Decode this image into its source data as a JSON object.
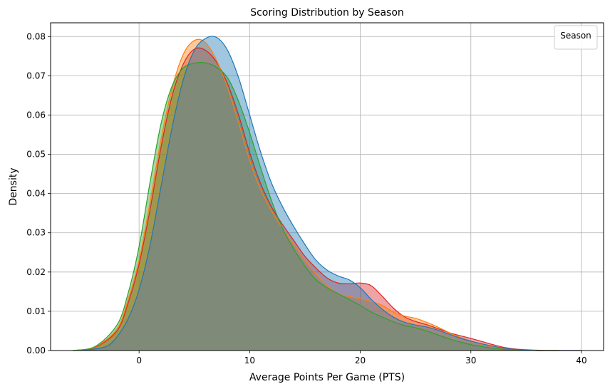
{
  "chart_data": {
    "type": "area",
    "title": "Scoring Distribution by Season",
    "xlabel": "Average Points Per Game (PTS)",
    "ylabel": "Density",
    "xlim": [
      -8,
      42
    ],
    "ylim": [
      0,
      0.0835
    ],
    "x_ticks": [
      0,
      10,
      20,
      30,
      40
    ],
    "y_ticks": [
      0.0,
      0.01,
      0.02,
      0.03,
      0.04,
      0.05,
      0.06,
      0.07,
      0.08
    ],
    "x_tick_labels": [
      "0",
      "10",
      "20",
      "30",
      "40"
    ],
    "y_tick_labels": [
      "0.00",
      "0.01",
      "0.02",
      "0.03",
      "0.04",
      "0.05",
      "0.06",
      "0.07",
      "0.08"
    ],
    "grid": true,
    "legend": {
      "title": "Season",
      "position": "top-right"
    },
    "series": [
      {
        "color": "#d62728",
        "x": [
          -6,
          -4,
          -2,
          -1,
          0,
          1,
          2,
          3,
          4,
          5,
          6,
          7,
          8,
          9,
          10,
          11,
          12,
          13,
          14,
          15,
          16,
          17,
          18,
          19,
          20,
          21,
          22,
          23,
          24,
          25,
          26,
          27,
          28,
          29,
          30,
          31,
          32,
          33,
          34,
          35,
          36,
          37,
          38,
          39,
          40
        ],
        "y": [
          0.0,
          0.0008,
          0.005,
          0.012,
          0.022,
          0.036,
          0.052,
          0.065,
          0.073,
          0.0768,
          0.0765,
          0.0735,
          0.068,
          0.06,
          0.0505,
          0.0425,
          0.0365,
          0.032,
          0.028,
          0.024,
          0.021,
          0.0185,
          0.0172,
          0.017,
          0.0172,
          0.0165,
          0.0138,
          0.0108,
          0.0086,
          0.0074,
          0.0066,
          0.0056,
          0.0046,
          0.0038,
          0.0031,
          0.0023,
          0.0015,
          0.0008,
          0.0004,
          0.0002,
          0.0001,
          0.0,
          0.0,
          0.0,
          0.0
        ]
      },
      {
        "color": "#ff7f0e",
        "x": [
          -6,
          -4,
          -2,
          -1,
          0,
          1,
          2,
          3,
          4,
          5,
          6,
          7,
          8,
          9,
          10,
          11,
          12,
          13,
          14,
          15,
          16,
          17,
          18,
          19,
          20,
          21,
          22,
          23,
          24,
          25,
          26,
          27,
          28,
          29,
          30,
          31,
          32,
          33,
          34,
          35,
          36,
          37,
          38
        ],
        "y": [
          0.0,
          0.0009,
          0.0055,
          0.013,
          0.023,
          0.038,
          0.054,
          0.067,
          0.0755,
          0.079,
          0.0785,
          0.074,
          0.067,
          0.058,
          0.0485,
          0.041,
          0.0355,
          0.031,
          0.027,
          0.023,
          0.0195,
          0.0165,
          0.0145,
          0.0138,
          0.0132,
          0.0125,
          0.0115,
          0.0098,
          0.0088,
          0.0082,
          0.0072,
          0.006,
          0.0046,
          0.0034,
          0.0024,
          0.0016,
          0.001,
          0.0005,
          0.0002,
          0.0001,
          0.0,
          0.0,
          0.0
        ]
      },
      {
        "color": "#2ca02c",
        "x": [
          -6,
          -4,
          -2,
          -1,
          0,
          1,
          2,
          3,
          4,
          5,
          6,
          7,
          8,
          9,
          10,
          11,
          12,
          13,
          14,
          15,
          16,
          17,
          18,
          19,
          20,
          21,
          22,
          23,
          24,
          25,
          26,
          27,
          28,
          29,
          30,
          31,
          32,
          33,
          34,
          35,
          36,
          37,
          38
        ],
        "y": [
          0.0,
          0.001,
          0.0065,
          0.0145,
          0.0265,
          0.043,
          0.058,
          0.0675,
          0.072,
          0.0732,
          0.0733,
          0.0722,
          0.0695,
          0.0635,
          0.0555,
          0.0465,
          0.038,
          0.031,
          0.0258,
          0.0215,
          0.018,
          0.016,
          0.0145,
          0.013,
          0.0115,
          0.0098,
          0.0085,
          0.0073,
          0.0064,
          0.0058,
          0.005,
          0.004,
          0.003,
          0.0022,
          0.0015,
          0.001,
          0.0006,
          0.0003,
          0.0002,
          0.0001,
          0.0,
          0.0,
          0.0
        ]
      },
      {
        "color": "#1f77b4",
        "x": [
          -5,
          -3,
          -2,
          -1,
          0,
          1,
          2,
          3,
          4,
          5,
          6,
          7,
          8,
          9,
          10,
          11,
          12,
          13,
          14,
          15,
          16,
          17,
          18,
          19,
          20,
          21,
          22,
          23,
          24,
          25,
          26,
          27,
          28,
          29,
          30,
          31,
          32,
          33,
          34,
          35,
          36,
          37,
          38,
          39,
          40
        ],
        "y": [
          0.0,
          0.001,
          0.0035,
          0.008,
          0.0155,
          0.027,
          0.042,
          0.057,
          0.069,
          0.0765,
          0.0795,
          0.0798,
          0.0765,
          0.0695,
          0.06,
          0.0505,
          0.0425,
          0.0365,
          0.0315,
          0.027,
          0.023,
          0.0205,
          0.019,
          0.018,
          0.016,
          0.013,
          0.0105,
          0.0085,
          0.0072,
          0.0065,
          0.006,
          0.0052,
          0.0042,
          0.0032,
          0.0024,
          0.0017,
          0.0011,
          0.0006,
          0.0003,
          0.0001,
          0.0,
          0.0,
          0.0,
          0.0,
          0.0
        ]
      }
    ],
    "overlap_color": "#838a78"
  }
}
